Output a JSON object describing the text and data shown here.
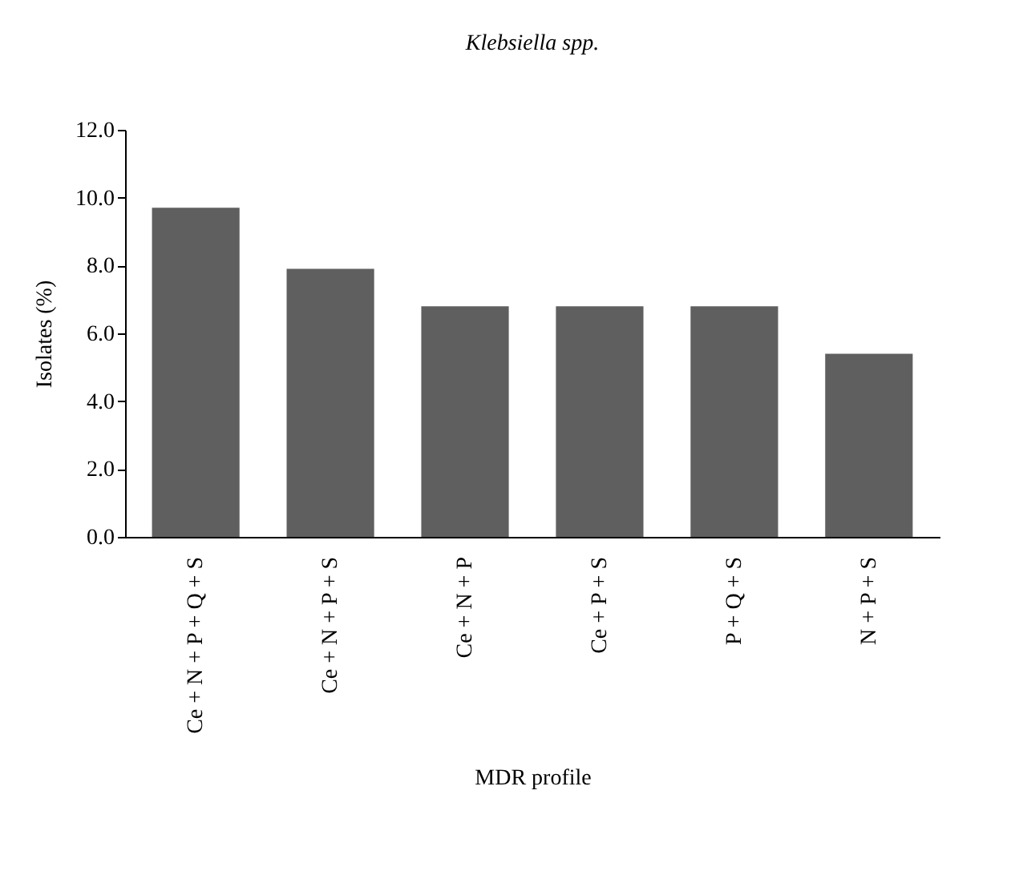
{
  "chart_data": {
    "type": "bar",
    "title": "Klebsiella spp.",
    "xlabel": "MDR profile",
    "ylabel": "Isolates (%)",
    "categories": [
      "Ce + N + P + Q + S",
      "Ce + N + P + S",
      "Ce + N + P",
      "Ce + P + S",
      "P + Q + S",
      "N + P + S"
    ],
    "values": [
      9.7,
      7.9,
      6.8,
      6.8,
      6.8,
      5.4
    ],
    "color": "#5f5f5f",
    "ylim": [
      0,
      12
    ],
    "yticks": [
      {
        "value": 0,
        "label": "0.0"
      },
      {
        "value": 2,
        "label": "2.0"
      },
      {
        "value": 4,
        "label": "4.0"
      },
      {
        "value": 6,
        "label": "6.0"
      },
      {
        "value": 8,
        "label": "8.0"
      },
      {
        "value": 10,
        "label": "10.0"
      },
      {
        "value": 12,
        "label": "12.0"
      }
    ],
    "grid": false
  }
}
